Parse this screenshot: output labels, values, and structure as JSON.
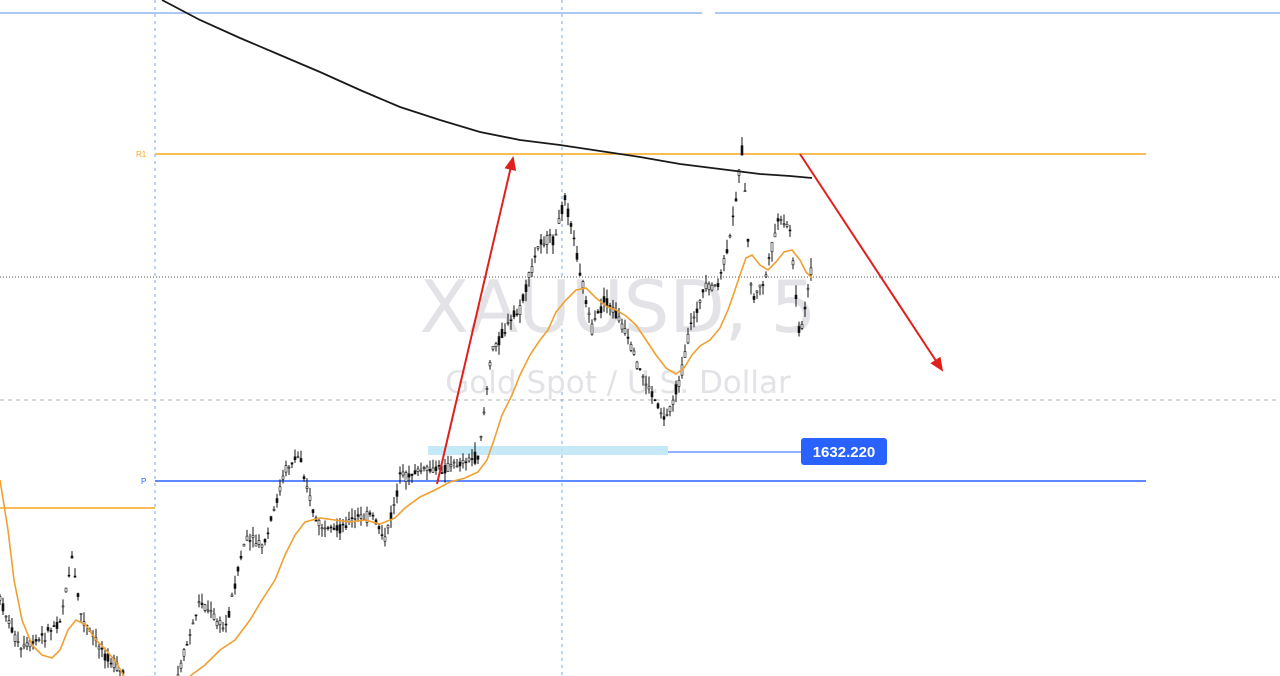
{
  "chart_data": {
    "type": "candlestick",
    "symbol": "XAUUSD, 5",
    "description": "Gold Spot / U.S. Dollar",
    "price_marker": "1632.220",
    "levels": [
      {
        "label": "R1",
        "color": "#f5a623"
      },
      {
        "label": "P",
        "color": "#2962ff"
      }
    ],
    "colors": {
      "candles": "#000000",
      "ema_fast": "#f0a030",
      "ma_slow": "#1a1a1a",
      "arrows": "#e0201c",
      "price_tag_bg": "#2962ff",
      "zone": "#bfe7f5",
      "top_line": "#7aa7e8"
    },
    "grid": "dashed vertical session separators"
  }
}
